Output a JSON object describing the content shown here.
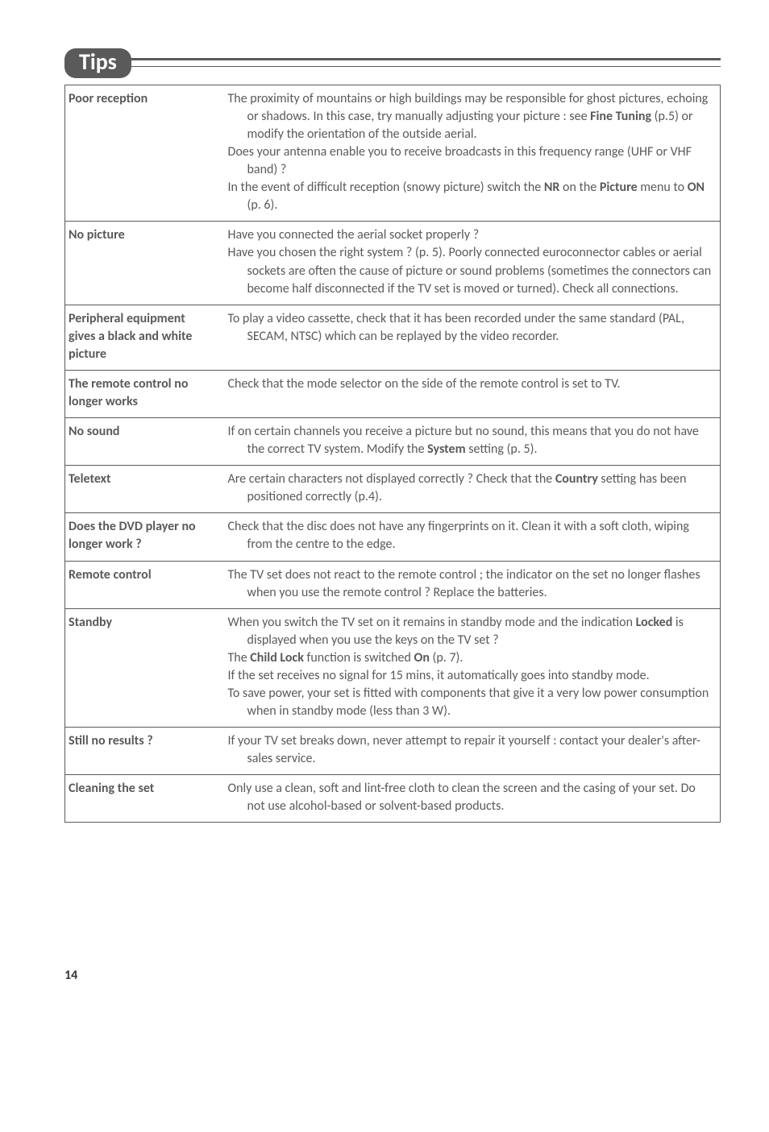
{
  "header": {
    "badge": "Tips"
  },
  "rows": [
    {
      "label": "Poor reception",
      "desc": "The proximity of mountains or high buildings may be responsible for ghost pictures, echoing or shadows. In this case, try manually adjusting your picture : see <b>Fine Tuning</b> (p.5) or modify the orientation of the outside aerial.<br>Does your antenna enable you to receive broadcasts in this frequency range (UHF or VHF band) ?<br>In the event of difficult reception (snowy picture) switch the <b>NR</b> on the <b>Picture</b> menu to <b>ON</b> (p. 6)."
    },
    {
      "label": "No picture",
      "desc": "Have you connected the aerial socket properly ?<br>Have you chosen the right system ? (p. 5). Poorly connected euroconnector cables or aerial sockets are often the cause of picture or sound problems (sometimes the connectors can become half disconnected if the TV set is moved or turned). Check all connections."
    },
    {
      "label": "Peripheral equipment gives a black and white picture",
      "desc": "To play a video cassette, check that it has been recorded under the same standard (PAL, SECAM, NTSC) which can be replayed by the video recorder."
    },
    {
      "label": "The remote control no longer works",
      "desc": "Check that the mode selector on the side of the remote control is set to TV."
    },
    {
      "label": "No sound",
      "desc": "If on certain channels you receive a picture but no sound, this means that you do not have the correct TV system. Modify the <b>System</b> setting (p. 5)."
    },
    {
      "label": "Teletext",
      "desc": "Are certain characters not displayed correctly ? Check that the <b>Country</b> setting has been positioned correctly (p.4)."
    },
    {
      "label": "Does the DVD player no longer work ?",
      "desc": "Check that the disc does not have any fingerprints on it. Clean it with a soft cloth, wiping from the centre to the edge."
    },
    {
      "label": "Remote control",
      "desc": "The TV set does not react to the remote control ; the indicator on the set no longer flashes when you use the remote control ? Replace the batteries."
    },
    {
      "label": "Standby",
      "desc": "When you switch the TV set on it remains in standby mode and the indication <b>Locked</b> is displayed when you use the keys on the TV set ?<br>The <b>Child Lock</b> function is switched <b>On</b> (p. 7).<br>If the set receives no signal for 15 mins, it automatically goes into standby mode.<br>To save power, your set is fitted with components that give it a very low power consumption when in standby mode (less than 3 W)."
    },
    {
      "label": "Still no results ?",
      "desc": "If your TV set breaks down, never attempt to repair it yourself : contact your dealer's after-sales service."
    },
    {
      "label": "Cleaning the set",
      "desc": "Only use a clean, soft and lint-free cloth to clean the screen and the casing of your set. Do not use alcohol-based or solvent-based products."
    }
  ],
  "page_number": "14"
}
